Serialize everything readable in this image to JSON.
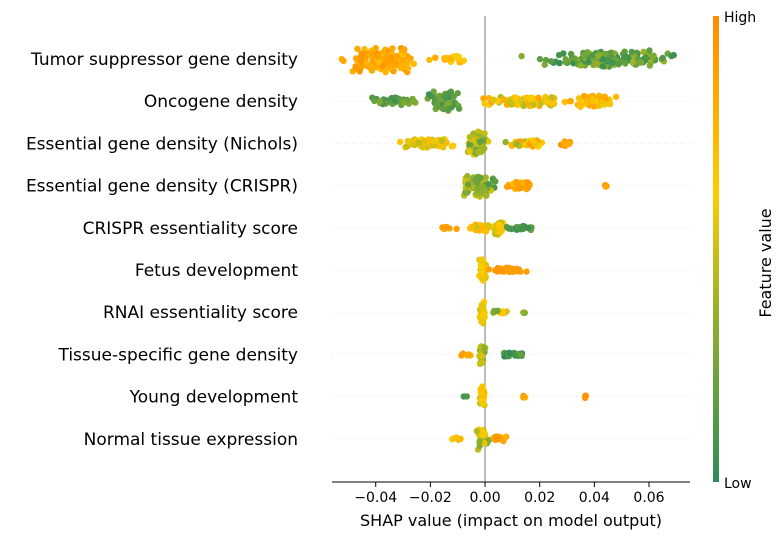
{
  "chart_data": {
    "type": "scatter",
    "subtype": "shap-beeswarm",
    "xlabel": "SHAP value (impact on model output)",
    "xlim": [
      -0.056,
      0.075
    ],
    "xticks": [
      -0.04,
      -0.02,
      0.0,
      0.02,
      0.04,
      0.06
    ],
    "xtick_labels": [
      "−0.04",
      "−0.02",
      "0.00",
      "0.02",
      "0.04",
      "0.06"
    ],
    "colorbar": {
      "label": "Feature value",
      "high_label": "High",
      "low_label": "Low",
      "colors": [
        "#2e8b57",
        "#8fb02c",
        "#ffcc00",
        "#ff8c00"
      ]
    },
    "features": [
      {
        "name": "Tumor suppressor gene density",
        "clusters": [
          {
            "center": -0.037,
            "spread": 0.012,
            "width": 0.9,
            "n": 150,
            "color": [
              0.7,
              0.95
            ]
          },
          {
            "center": -0.012,
            "spread": 0.005,
            "width": 0.25,
            "n": 18,
            "color": [
              0.6,
              0.85
            ]
          },
          {
            "center": 0.045,
            "spread": 0.022,
            "width": 0.6,
            "n": 160,
            "color": [
              0.02,
              0.4
            ]
          }
        ]
      },
      {
        "name": "Oncogene density",
        "clusters": [
          {
            "center": -0.033,
            "spread": 0.008,
            "width": 0.3,
            "n": 40,
            "color": [
              0.02,
              0.3
            ]
          },
          {
            "center": -0.015,
            "spread": 0.005,
            "width": 0.7,
            "n": 55,
            "color": [
              0.05,
              0.3
            ]
          },
          {
            "center": 0.015,
            "spread": 0.013,
            "width": 0.35,
            "n": 90,
            "color": [
              0.45,
              0.85
            ]
          },
          {
            "center": 0.04,
            "spread": 0.007,
            "width": 0.4,
            "n": 70,
            "color": [
              0.55,
              0.9
            ]
          }
        ]
      },
      {
        "name": "Essential gene density (Nichols)",
        "clusters": [
          {
            "center": -0.02,
            "spread": 0.009,
            "width": 0.35,
            "n": 60,
            "color": [
              0.45,
              0.75
            ]
          },
          {
            "center": -0.003,
            "spread": 0.004,
            "width": 0.85,
            "n": 70,
            "color": [
              0.2,
              0.6
            ]
          },
          {
            "center": 0.015,
            "spread": 0.007,
            "width": 0.25,
            "n": 35,
            "color": [
              0.3,
              0.9
            ]
          },
          {
            "center": 0.03,
            "spread": 0.003,
            "width": 0.2,
            "n": 10,
            "color": [
              0.8,
              0.98
            ]
          }
        ]
      },
      {
        "name": "Essential gene density (CRISPR)",
        "clusters": [
          {
            "center": -0.002,
            "spread": 0.005,
            "width": 0.75,
            "n": 90,
            "color": [
              0.1,
              0.55
            ]
          },
          {
            "center": 0.013,
            "spread": 0.004,
            "width": 0.3,
            "n": 35,
            "color": [
              0.7,
              0.95
            ]
          },
          {
            "center": 0.044,
            "spread": 0.001,
            "width": 0.1,
            "n": 5,
            "color": [
              0.85,
              0.95
            ]
          }
        ]
      },
      {
        "name": "CRISPR essentiality score",
        "clusters": [
          {
            "center": -0.014,
            "spread": 0.003,
            "width": 0.1,
            "n": 8,
            "color": [
              0.8,
              0.95
            ]
          },
          {
            "center": -0.001,
            "spread": 0.004,
            "width": 0.3,
            "n": 30,
            "color": [
              0.5,
              0.8
            ]
          },
          {
            "center": 0.005,
            "spread": 0.002,
            "width": 0.5,
            "n": 30,
            "color": [
              0.45,
              0.7
            ]
          },
          {
            "center": 0.013,
            "spread": 0.005,
            "width": 0.15,
            "n": 22,
            "color": [
              0.02,
              0.25
            ]
          }
        ]
      },
      {
        "name": "Fetus development",
        "clusters": [
          {
            "center": -0.001,
            "spread": 0.001,
            "width": 0.8,
            "n": 40,
            "color": [
              0.5,
              0.72
            ]
          },
          {
            "center": 0.008,
            "spread": 0.005,
            "width": 0.15,
            "n": 45,
            "color": [
              0.85,
              0.98
            ]
          }
        ]
      },
      {
        "name": "RNAI essentiality score",
        "clusters": [
          {
            "center": -0.001,
            "spread": 0.001,
            "width": 0.75,
            "n": 40,
            "color": [
              0.5,
              0.72
            ]
          },
          {
            "center": 0.006,
            "spread": 0.003,
            "width": 0.1,
            "n": 10,
            "color": [
              0.2,
              0.7
            ]
          },
          {
            "center": 0.014,
            "spread": 0.001,
            "width": 0.1,
            "n": 3,
            "color": [
              0.2,
              0.4
            ]
          }
        ]
      },
      {
        "name": "Tissue-specific gene density",
        "clusters": [
          {
            "center": -0.007,
            "spread": 0.002,
            "width": 0.1,
            "n": 6,
            "color": [
              0.8,
              0.95
            ]
          },
          {
            "center": -0.001,
            "spread": 0.001,
            "width": 0.7,
            "n": 35,
            "color": [
              0.25,
              0.55
            ]
          },
          {
            "center": 0.01,
            "spread": 0.004,
            "width": 0.15,
            "n": 25,
            "color": [
              0.0,
              0.2
            ]
          }
        ]
      },
      {
        "name": "Young development",
        "clusters": [
          {
            "center": -0.007,
            "spread": 0.001,
            "width": 0.05,
            "n": 2,
            "color": [
              0.05,
              0.15
            ]
          },
          {
            "center": -0.001,
            "spread": 0.001,
            "width": 0.7,
            "n": 35,
            "color": [
              0.5,
              0.72
            ]
          },
          {
            "center": 0.014,
            "spread": 0.001,
            "width": 0.1,
            "n": 5,
            "color": [
              0.8,
              0.95
            ]
          },
          {
            "center": 0.037,
            "spread": 0.001,
            "width": 0.1,
            "n": 4,
            "color": [
              0.85,
              0.98
            ]
          }
        ]
      },
      {
        "name": "Normal tissue expression",
        "clusters": [
          {
            "center": -0.01,
            "spread": 0.002,
            "width": 0.1,
            "n": 6,
            "color": [
              0.5,
              0.8
            ]
          },
          {
            "center": -0.001,
            "spread": 0.002,
            "width": 0.75,
            "n": 35,
            "color": [
              0.3,
              0.65
            ]
          },
          {
            "center": 0.005,
            "spread": 0.003,
            "width": 0.25,
            "n": 20,
            "color": [
              0.65,
              0.95
            ]
          }
        ]
      }
    ]
  }
}
